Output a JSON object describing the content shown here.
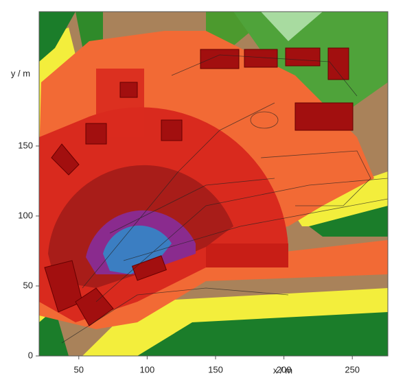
{
  "chart_data": {
    "type": "map",
    "xlabel": "x / m",
    "ylabel": "y / m",
    "xlim": [
      21,
      276
    ],
    "ylim": [
      0,
      246
    ],
    "xticks": [
      50,
      100,
      150,
      200,
      250
    ],
    "yticks": [
      0,
      50,
      100,
      150
    ]
  }
}
